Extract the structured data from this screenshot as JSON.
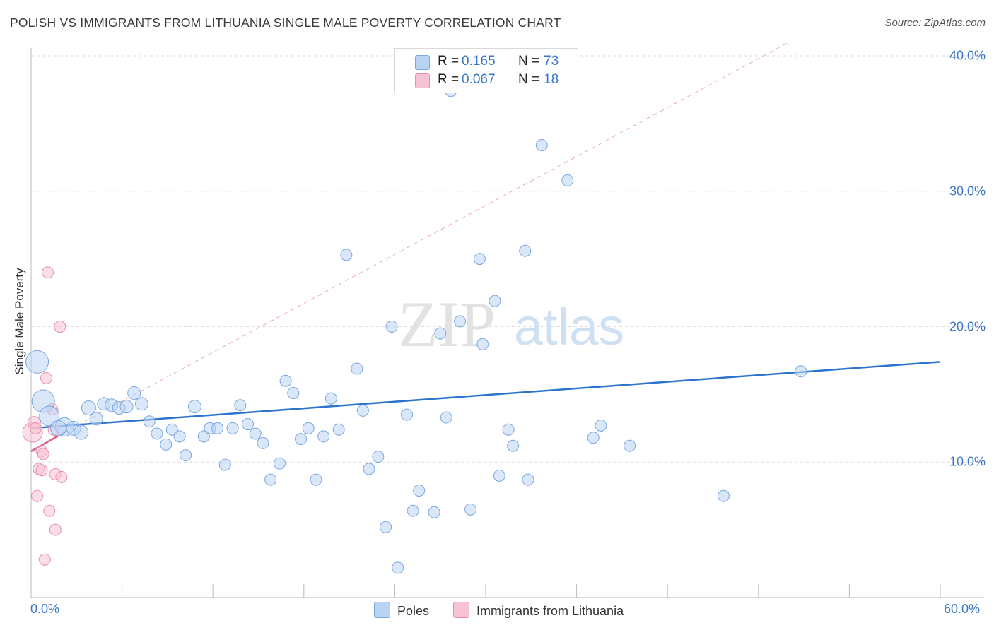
{
  "title": "POLISH VS IMMIGRANTS FROM LITHUANIA SINGLE MALE POVERTY CORRELATION CHART",
  "source": "Source: ZipAtlas.com",
  "watermark": {
    "zip": "ZIP",
    "atlas": "atlas"
  },
  "legend": {
    "rows": [
      {
        "r_label": "R =",
        "r_value": "0.165",
        "n_label": "N =",
        "n_value": "73"
      },
      {
        "r_label": "R =",
        "r_value": "0.067",
        "n_label": "N =",
        "n_value": "18"
      }
    ]
  },
  "bottom_legend": {
    "poles": "Poles",
    "lithuania": "Immigrants from Lithuania"
  },
  "colors": {
    "poles_fill": "#b9d3f3",
    "poles_stroke": "#7ba7e0",
    "poles_line": "#2c74cc",
    "lith_fill": "#f7c3d3",
    "lith_stroke": "#e98fab",
    "lith_line": "#e0588a",
    "tick_label": "#3b78c8",
    "grid": "#dddddd"
  },
  "chart_data": {
    "type": "scatter",
    "title": "POLISH VS IMMIGRANTS FROM LITHUANIA SINGLE MALE POVERTY CORRELATION CHART",
    "xlabel": "",
    "ylabel": "Single Male Poverty",
    "xlim": [
      0,
      60
    ],
    "ylim": [
      0,
      40
    ],
    "x_tick_labels": [
      "0.0%",
      "60.0%"
    ],
    "y_ticks": [
      10,
      20,
      30,
      40
    ],
    "y_tick_labels": [
      "10.0%",
      "20.0%",
      "30.0%",
      "40.0%"
    ],
    "grid": true,
    "legend_position": "top-center",
    "series": [
      {
        "name": "Poles",
        "r": 0.165,
        "n": 73,
        "trend": {
          "x": [
            0,
            60
          ],
          "y": [
            12.5,
            17.4
          ]
        },
        "points": [
          {
            "x": 0.4,
            "y": 17.4,
            "s": 16
          },
          {
            "x": 0.8,
            "y": 14.5,
            "s": 16
          },
          {
            "x": 1.2,
            "y": 13.4,
            "s": 14
          },
          {
            "x": 2.2,
            "y": 12.6,
            "s": 13
          },
          {
            "x": 1.8,
            "y": 12.5,
            "s": 11
          },
          {
            "x": 2.8,
            "y": 12.5,
            "s": 10
          },
          {
            "x": 3.3,
            "y": 12.2,
            "s": 10
          },
          {
            "x": 3.8,
            "y": 14.0,
            "s": 10
          },
          {
            "x": 4.3,
            "y": 13.2,
            "s": 9
          },
          {
            "x": 4.8,
            "y": 14.3,
            "s": 9
          },
          {
            "x": 5.3,
            "y": 14.2,
            "s": 9
          },
          {
            "x": 5.8,
            "y": 14.0,
            "s": 9
          },
          {
            "x": 6.3,
            "y": 14.1,
            "s": 9
          },
          {
            "x": 6.8,
            "y": 15.1,
            "s": 9
          },
          {
            "x": 7.3,
            "y": 14.3,
            "s": 9
          },
          {
            "x": 7.8,
            "y": 13.0,
            "s": 8
          },
          {
            "x": 8.3,
            "y": 12.1,
            "s": 8
          },
          {
            "x": 8.9,
            "y": 11.3,
            "s": 8
          },
          {
            "x": 9.3,
            "y": 12.4,
            "s": 8
          },
          {
            "x": 9.8,
            "y": 11.9,
            "s": 8
          },
          {
            "x": 10.2,
            "y": 10.5,
            "s": 8
          },
          {
            "x": 10.8,
            "y": 14.1,
            "s": 9
          },
          {
            "x": 11.4,
            "y": 11.9,
            "s": 8
          },
          {
            "x": 11.8,
            "y": 12.5,
            "s": 8
          },
          {
            "x": 12.3,
            "y": 12.5,
            "s": 8
          },
          {
            "x": 12.8,
            "y": 9.8,
            "s": 8
          },
          {
            "x": 13.3,
            "y": 12.5,
            "s": 8
          },
          {
            "x": 13.8,
            "y": 14.2,
            "s": 8
          },
          {
            "x": 14.3,
            "y": 12.8,
            "s": 8
          },
          {
            "x": 14.8,
            "y": 12.1,
            "s": 8
          },
          {
            "x": 15.3,
            "y": 11.4,
            "s": 8
          },
          {
            "x": 15.8,
            "y": 8.7,
            "s": 8
          },
          {
            "x": 16.4,
            "y": 9.9,
            "s": 8
          },
          {
            "x": 16.8,
            "y": 16.0,
            "s": 8
          },
          {
            "x": 17.3,
            "y": 15.1,
            "s": 8
          },
          {
            "x": 17.8,
            "y": 11.7,
            "s": 8
          },
          {
            "x": 18.3,
            "y": 12.5,
            "s": 8
          },
          {
            "x": 18.8,
            "y": 8.7,
            "s": 8
          },
          {
            "x": 19.3,
            "y": 11.9,
            "s": 8
          },
          {
            "x": 19.8,
            "y": 14.7,
            "s": 8
          },
          {
            "x": 20.3,
            "y": 12.4,
            "s": 8
          },
          {
            "x": 20.8,
            "y": 25.3,
            "s": 8
          },
          {
            "x": 21.5,
            "y": 16.9,
            "s": 8
          },
          {
            "x": 21.9,
            "y": 13.8,
            "s": 8
          },
          {
            "x": 22.3,
            "y": 9.5,
            "s": 8
          },
          {
            "x": 22.9,
            "y": 10.4,
            "s": 8
          },
          {
            "x": 23.4,
            "y": 5.2,
            "s": 8
          },
          {
            "x": 23.8,
            "y": 20.0,
            "s": 8
          },
          {
            "x": 24.2,
            "y": 2.2,
            "s": 8
          },
          {
            "x": 24.8,
            "y": 13.5,
            "s": 8
          },
          {
            "x": 25.2,
            "y": 6.4,
            "s": 8
          },
          {
            "x": 25.6,
            "y": 7.9,
            "s": 8
          },
          {
            "x": 26.6,
            "y": 6.3,
            "s": 8
          },
          {
            "x": 27.0,
            "y": 19.5,
            "s": 8
          },
          {
            "x": 27.4,
            "y": 13.3,
            "s": 8
          },
          {
            "x": 27.7,
            "y": 37.4,
            "s": 8
          },
          {
            "x": 28.3,
            "y": 20.4,
            "s": 8
          },
          {
            "x": 29.0,
            "y": 6.5,
            "s": 8
          },
          {
            "x": 29.6,
            "y": 25.0,
            "s": 8
          },
          {
            "x": 29.8,
            "y": 18.7,
            "s": 8
          },
          {
            "x": 30.6,
            "y": 21.9,
            "s": 8
          },
          {
            "x": 30.9,
            "y": 9.0,
            "s": 8
          },
          {
            "x": 31.5,
            "y": 12.4,
            "s": 8
          },
          {
            "x": 31.8,
            "y": 11.2,
            "s": 8
          },
          {
            "x": 32.6,
            "y": 25.6,
            "s": 8
          },
          {
            "x": 32.8,
            "y": 8.7,
            "s": 8
          },
          {
            "x": 33.7,
            "y": 33.4,
            "s": 8
          },
          {
            "x": 35.4,
            "y": 30.8,
            "s": 8
          },
          {
            "x": 37.1,
            "y": 11.8,
            "s": 8
          },
          {
            "x": 37.6,
            "y": 12.7,
            "s": 8
          },
          {
            "x": 39.5,
            "y": 11.2,
            "s": 8
          },
          {
            "x": 45.7,
            "y": 7.5,
            "s": 8
          },
          {
            "x": 50.8,
            "y": 16.7,
            "s": 8
          }
        ]
      },
      {
        "name": "Immigrants from Lithuania",
        "r": 0.067,
        "n": 18,
        "trend": {
          "x": [
            0,
            2.2
          ],
          "y": [
            10.8,
            12.2
          ]
        },
        "trend_extension": {
          "x": [
            2.2,
            50
          ],
          "y": [
            12.2,
            41.0
          ]
        },
        "points": [
          {
            "x": 0.1,
            "y": 12.2,
            "s": 14
          },
          {
            "x": 0.2,
            "y": 12.9,
            "s": 9
          },
          {
            "x": 0.4,
            "y": 7.5,
            "s": 8
          },
          {
            "x": 0.5,
            "y": 9.5,
            "s": 8
          },
          {
            "x": 0.7,
            "y": 9.4,
            "s": 8
          },
          {
            "x": 0.7,
            "y": 10.8,
            "s": 8
          },
          {
            "x": 0.8,
            "y": 10.6,
            "s": 8
          },
          {
            "x": 0.9,
            "y": 2.8,
            "s": 8
          },
          {
            "x": 1.0,
            "y": 16.2,
            "s": 8
          },
          {
            "x": 1.1,
            "y": 24.0,
            "s": 8
          },
          {
            "x": 1.2,
            "y": 6.4,
            "s": 8
          },
          {
            "x": 1.4,
            "y": 13.9,
            "s": 8
          },
          {
            "x": 1.5,
            "y": 12.4,
            "s": 8
          },
          {
            "x": 1.6,
            "y": 5.0,
            "s": 8
          },
          {
            "x": 1.6,
            "y": 9.1,
            "s": 8
          },
          {
            "x": 1.9,
            "y": 20.0,
            "s": 8
          },
          {
            "x": 2.0,
            "y": 8.9,
            "s": 8
          },
          {
            "x": 0.3,
            "y": 12.5,
            "s": 8
          }
        ]
      }
    ]
  }
}
